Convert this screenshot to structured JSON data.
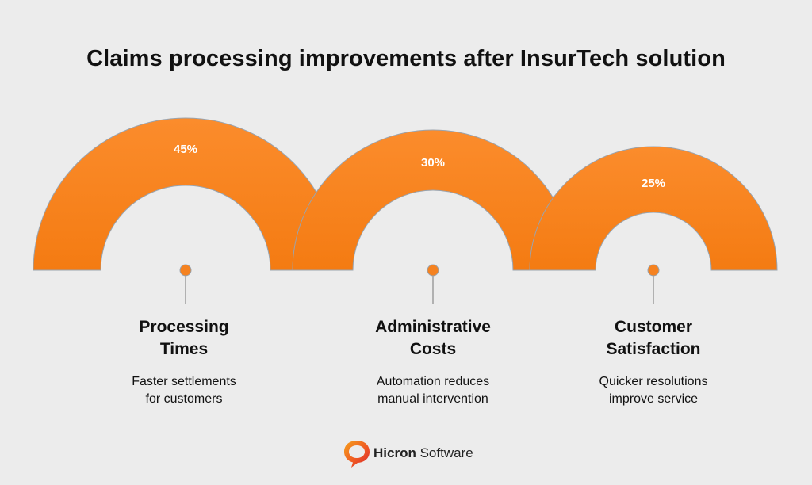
{
  "title": "Claims processing improvements after InsurTech solution",
  "accent_color": "#f58220",
  "items": [
    {
      "value": "45%",
      "percent": 45,
      "heading_line1": "Processing",
      "heading_line2": "Times",
      "desc_line1": "Faster settlements",
      "desc_line2": "for customers"
    },
    {
      "value": "30%",
      "percent": 30,
      "heading_line1": "Administrative",
      "heading_line2": "Costs",
      "desc_line1": "Automation reduces",
      "desc_line2": "manual intervention"
    },
    {
      "value": "25%",
      "percent": 25,
      "heading_line1": "Customer",
      "heading_line2": "Satisfaction",
      "desc_line1": "Quicker resolutions",
      "desc_line2": "improve service"
    }
  ],
  "logo": {
    "icon": "speech-bubble-logo-icon",
    "brand_bold": "Hicron",
    "brand_light": "Software"
  }
}
